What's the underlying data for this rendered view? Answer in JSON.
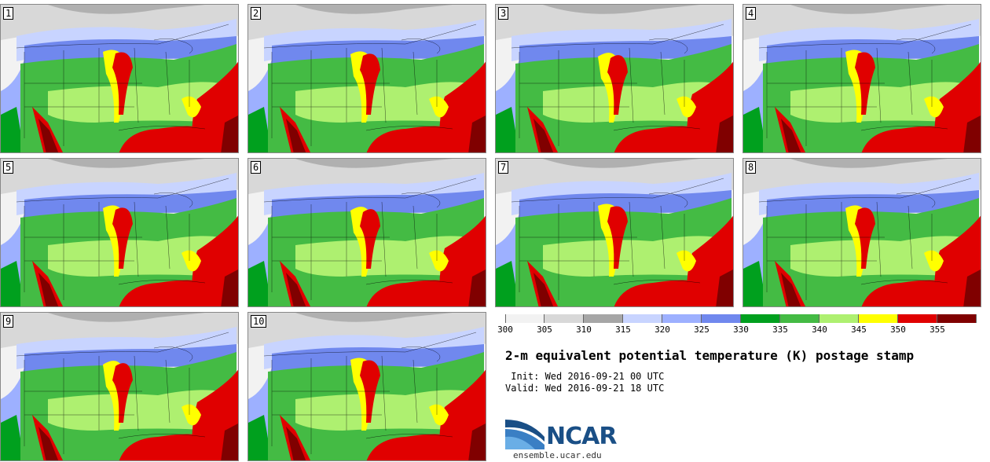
{
  "panels": [
    {
      "label": "1"
    },
    {
      "label": "2"
    },
    {
      "label": "3"
    },
    {
      "label": "4"
    },
    {
      "label": "5"
    },
    {
      "label": "6"
    },
    {
      "label": "7"
    },
    {
      "label": "8"
    },
    {
      "label": "9"
    },
    {
      "label": "10"
    }
  ],
  "colorbar": {
    "ticks": [
      "300",
      "305",
      "310",
      "315",
      "320",
      "325",
      "330",
      "335",
      "340",
      "345",
      "350",
      "355"
    ],
    "colors": [
      "#f2f2f2",
      "#d8d8d8",
      "#a6a6a6",
      "#c8d4ff",
      "#9db0ff",
      "#7088ee",
      "#00a01e",
      "#44bb44",
      "#aef070",
      "#ffff00",
      "#e00000",
      "#800000"
    ]
  },
  "title": "2-m equivalent potential temperature (K) postage stamp",
  "init": " Init: Wed 2016-09-21 00 UTC",
  "valid": "Valid: Wed 2016-09-21 18 UTC",
  "logo": {
    "name": "NCAR",
    "url": "ensemble.ucar.edu"
  }
}
